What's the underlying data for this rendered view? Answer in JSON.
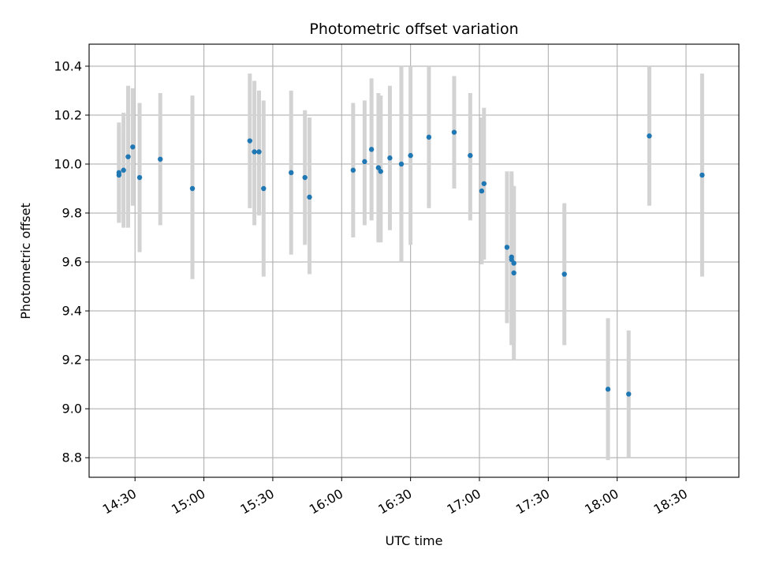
{
  "chart_data": {
    "type": "scatter",
    "title": "Photometric offset variation",
    "xlabel": "UTC time",
    "ylabel": "Photometric offset",
    "grid": true,
    "legend": "none",
    "x_unit": "UTC time (HH:MM)",
    "xlim": [
      "14:10",
      "18:53"
    ],
    "ylim": [
      8.72,
      10.49
    ],
    "x_ticks": [
      "14:30",
      "15:00",
      "15:30",
      "16:00",
      "16:30",
      "17:00",
      "17:30",
      "18:00",
      "18:30"
    ],
    "y_ticks": [
      "8.8",
      "9.0",
      "9.2",
      "9.4",
      "9.6",
      "9.8",
      "10.0",
      "10.2",
      "10.4"
    ],
    "point_color": "#1f77b4",
    "errorbar_color": "#d3d3d3",
    "series": [
      {
        "points": [
          {
            "t": "14:23",
            "y": 9.955,
            "lo": 9.76,
            "hi": 10.15
          },
          {
            "t": "14:23",
            "y": 9.965,
            "lo": 9.76,
            "hi": 10.17
          },
          {
            "t": "14:25",
            "y": 9.975,
            "lo": 9.74,
            "hi": 10.21
          },
          {
            "t": "14:27",
            "y": 10.03,
            "lo": 9.74,
            "hi": 10.32
          },
          {
            "t": "14:29",
            "y": 10.07,
            "lo": 9.83,
            "hi": 10.31
          },
          {
            "t": "14:32",
            "y": 9.945,
            "lo": 9.64,
            "hi": 10.25
          },
          {
            "t": "14:41",
            "y": 10.02,
            "lo": 9.75,
            "hi": 10.29
          },
          {
            "t": "14:55",
            "y": 9.9,
            "lo": 9.53,
            "hi": 10.28
          },
          {
            "t": "15:20",
            "y": 10.095,
            "lo": 9.82,
            "hi": 10.37
          },
          {
            "t": "15:22",
            "y": 10.05,
            "lo": 9.75,
            "hi": 10.34
          },
          {
            "t": "15:24",
            "y": 10.05,
            "lo": 9.79,
            "hi": 10.3
          },
          {
            "t": "15:26",
            "y": 9.9,
            "lo": 9.54,
            "hi": 10.26
          },
          {
            "t": "15:38",
            "y": 9.965,
            "lo": 9.63,
            "hi": 10.3
          },
          {
            "t": "15:44",
            "y": 9.945,
            "lo": 9.67,
            "hi": 10.22
          },
          {
            "t": "15:46",
            "y": 9.865,
            "lo": 9.55,
            "hi": 10.19
          },
          {
            "t": "16:05",
            "y": 9.975,
            "lo": 9.7,
            "hi": 10.25
          },
          {
            "t": "16:10",
            "y": 10.01,
            "lo": 9.75,
            "hi": 10.26
          },
          {
            "t": "16:13",
            "y": 10.06,
            "lo": 9.77,
            "hi": 10.35
          },
          {
            "t": "16:16",
            "y": 9.985,
            "lo": 9.68,
            "hi": 10.29
          },
          {
            "t": "16:17",
            "y": 9.97,
            "lo": 9.68,
            "hi": 10.28
          },
          {
            "t": "16:21",
            "y": 10.025,
            "lo": 9.73,
            "hi": 10.32
          },
          {
            "t": "16:26",
            "y": 10.0,
            "lo": 9.6,
            "hi": 10.4
          },
          {
            "t": "16:30",
            "y": 10.035,
            "lo": 9.67,
            "hi": 10.4
          },
          {
            "t": "16:38",
            "y": 10.11,
            "lo": 9.82,
            "hi": 10.4
          },
          {
            "t": "16:49",
            "y": 10.13,
            "lo": 9.9,
            "hi": 10.36
          },
          {
            "t": "16:56",
            "y": 10.035,
            "lo": 9.77,
            "hi": 10.29
          },
          {
            "t": "17:01",
            "y": 9.89,
            "lo": 9.59,
            "hi": 10.19
          },
          {
            "t": "17:02",
            "y": 9.92,
            "lo": 9.61,
            "hi": 10.23
          },
          {
            "t": "17:12",
            "y": 9.66,
            "lo": 9.35,
            "hi": 9.97
          },
          {
            "t": "17:14",
            "y": 9.62,
            "lo": 9.27,
            "hi": 9.97
          },
          {
            "t": "17:14",
            "y": 9.61,
            "lo": 9.26,
            "hi": 9.96
          },
          {
            "t": "17:15",
            "y": 9.555,
            "lo": 9.2,
            "hi": 9.91
          },
          {
            "t": "17:15",
            "y": 9.595,
            "lo": 9.28,
            "hi": 9.91
          },
          {
            "t": "17:37",
            "y": 9.55,
            "lo": 9.26,
            "hi": 9.84
          },
          {
            "t": "17:56",
            "y": 9.08,
            "lo": 8.79,
            "hi": 9.37
          },
          {
            "t": "18:05",
            "y": 9.06,
            "lo": 8.8,
            "hi": 9.32
          },
          {
            "t": "18:14",
            "y": 10.115,
            "lo": 9.83,
            "hi": 10.4
          },
          {
            "t": "18:37",
            "y": 9.955,
            "lo": 9.54,
            "hi": 10.37
          }
        ]
      }
    ]
  }
}
